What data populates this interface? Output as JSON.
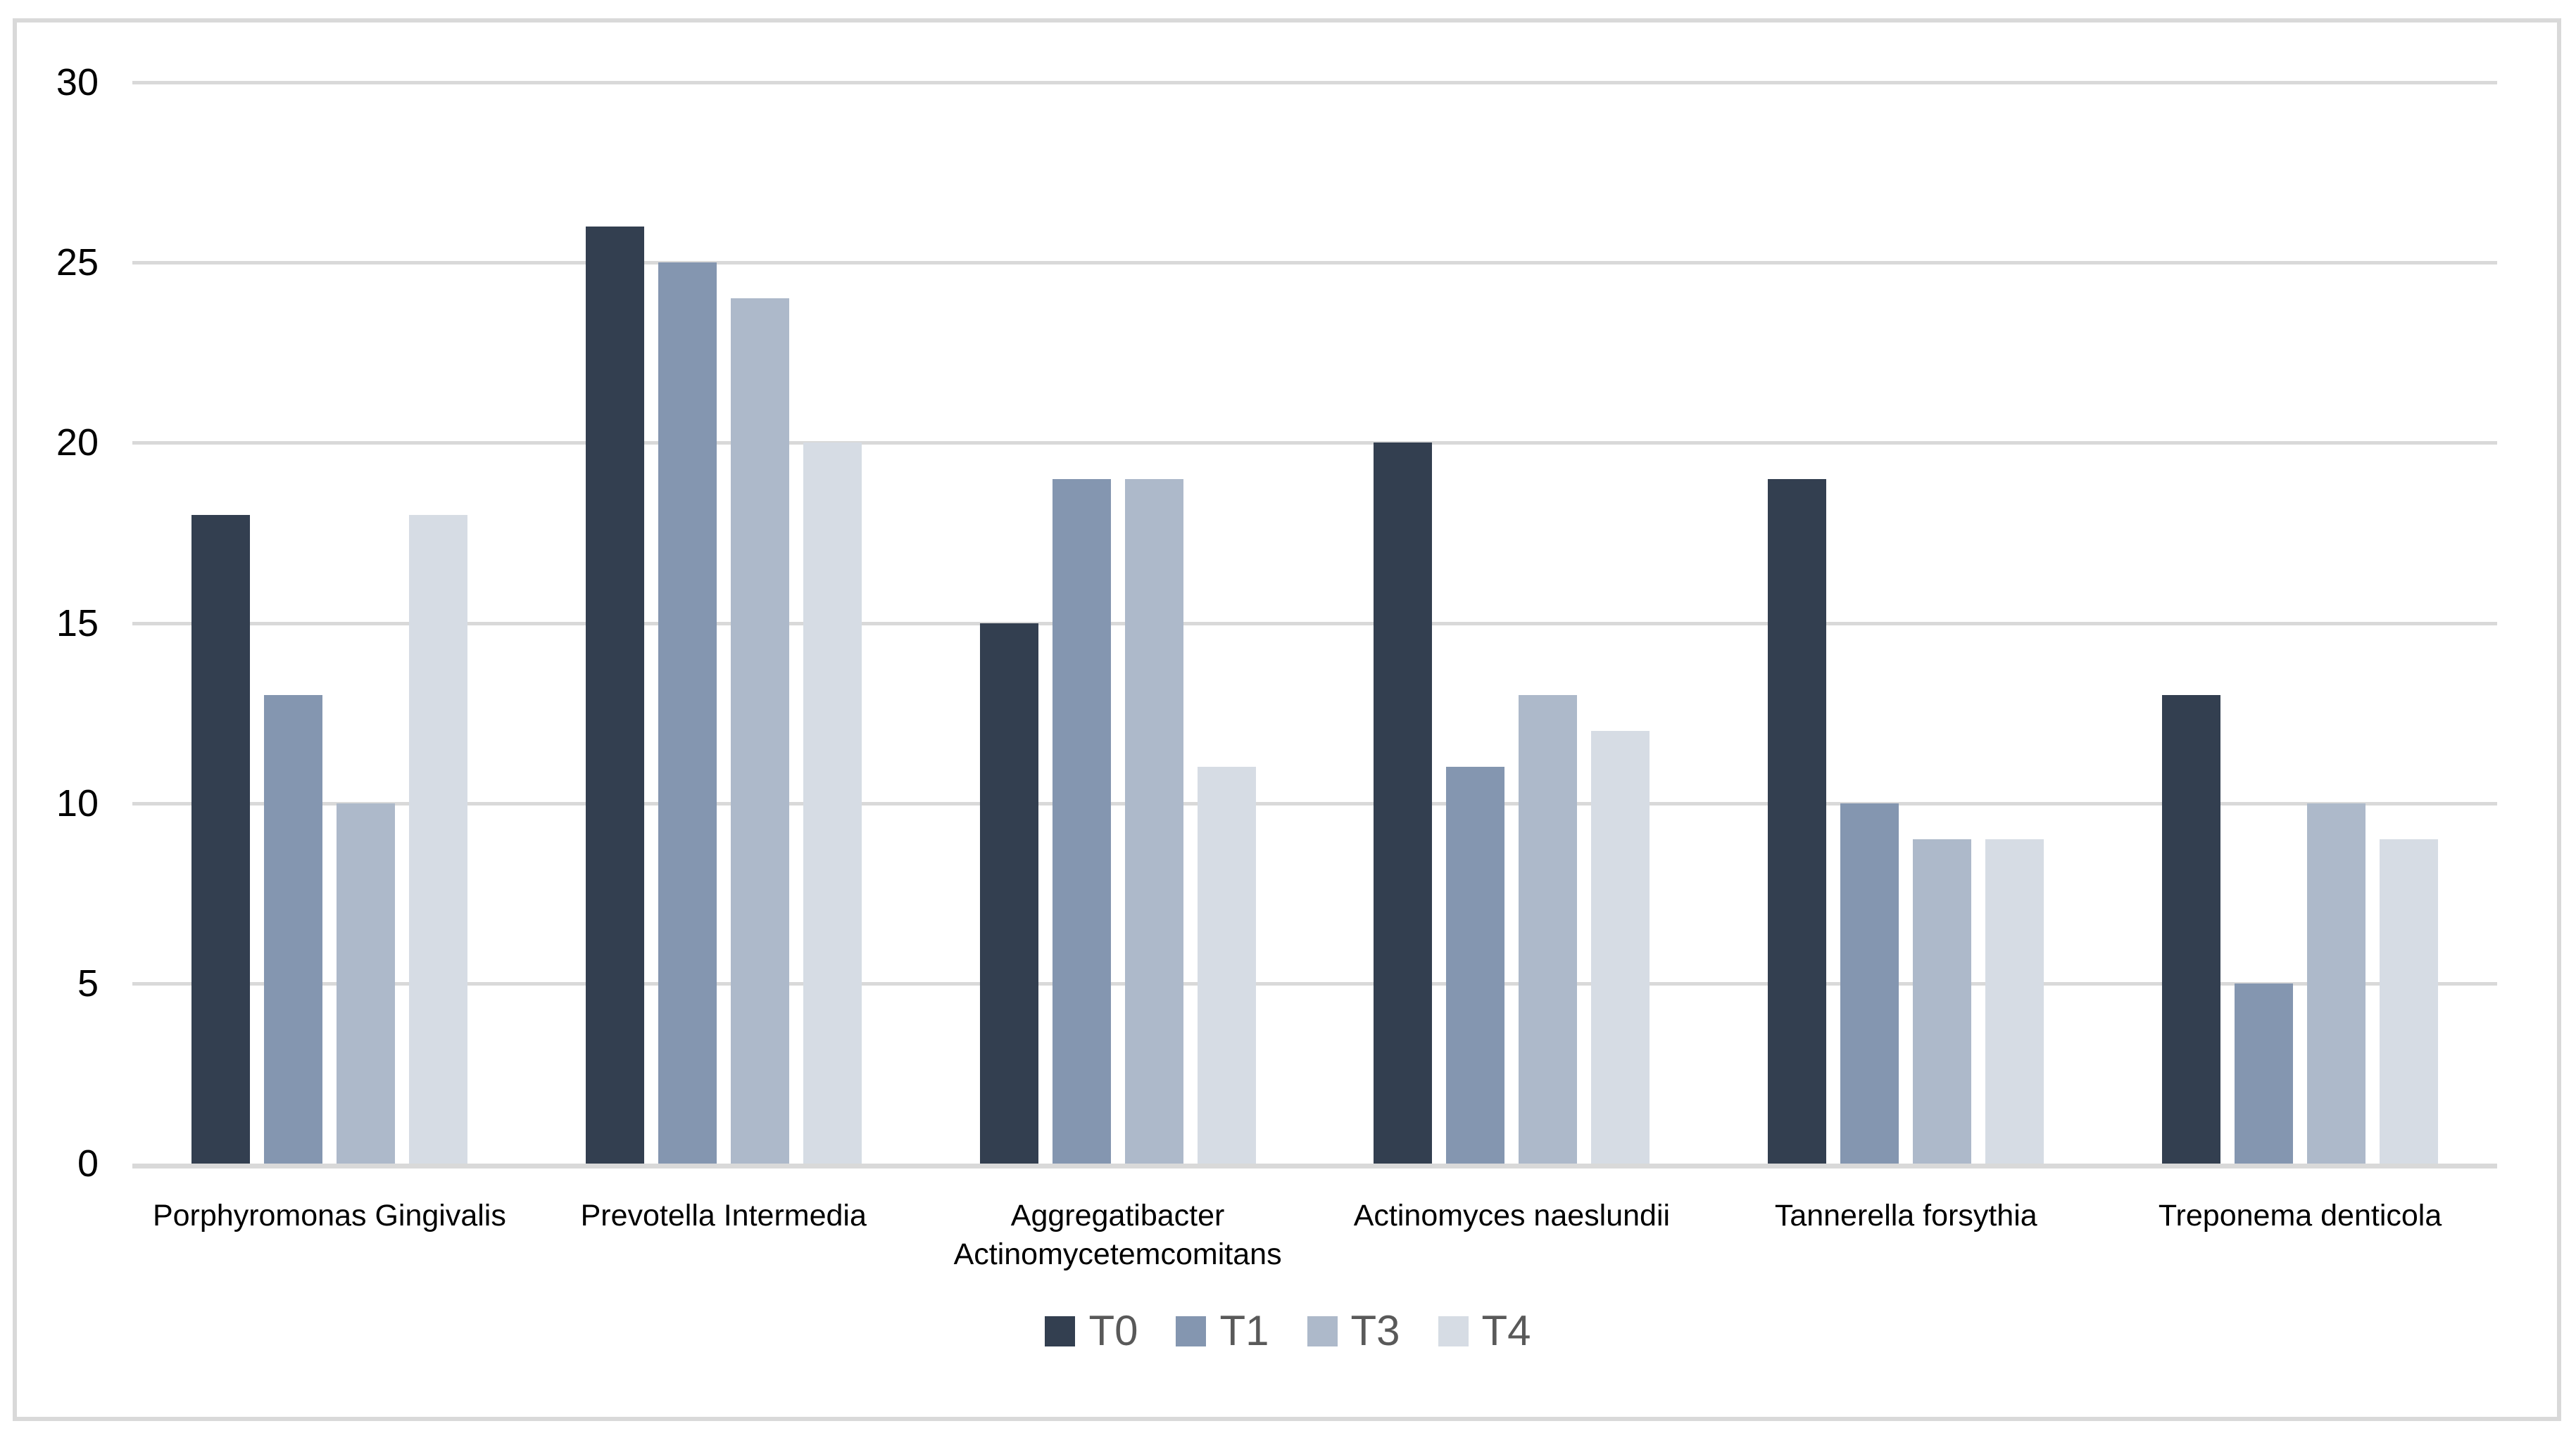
{
  "chart_data": {
    "type": "bar",
    "title": "",
    "xlabel": "",
    "ylabel": "",
    "categories": [
      "Porphyromonas Gingivalis",
      "Prevotella Intermedia",
      "Aggregatibacter Actinomycetemcomitans",
      "Actinomyces naeslundii",
      "Tannerella forsythia",
      "Treponema denticola"
    ],
    "series": [
      {
        "name": "T0",
        "color": "#333F50",
        "values": [
          18,
          26,
          15,
          20,
          19,
          13
        ]
      },
      {
        "name": "T1",
        "color": "#8496B0",
        "values": [
          13,
          25,
          19,
          11,
          10,
          5
        ]
      },
      {
        "name": "T3",
        "color": "#ADB9CA",
        "values": [
          10,
          24,
          19,
          13,
          9,
          10
        ]
      },
      {
        "name": "T4",
        "color": "#D6DCE4",
        "values": [
          18,
          20,
          11,
          12,
          9,
          9
        ]
      }
    ],
    "ylim": [
      0,
      30
    ],
    "ytick_interval": 5,
    "yticks": [
      "0",
      "5",
      "10",
      "15",
      "20",
      "25",
      "30"
    ],
    "grid": true,
    "legend_position": "bottom",
    "style": {
      "gridline_color": "#D9D9D9",
      "axis_line_color": "#D9D9D9",
      "frame_border_color": "#D9D9D9",
      "tick_label_color": "#000000",
      "category_label_color": "#000000",
      "legend_text_color": "#595959",
      "background_color": "#FFFFFF"
    }
  }
}
